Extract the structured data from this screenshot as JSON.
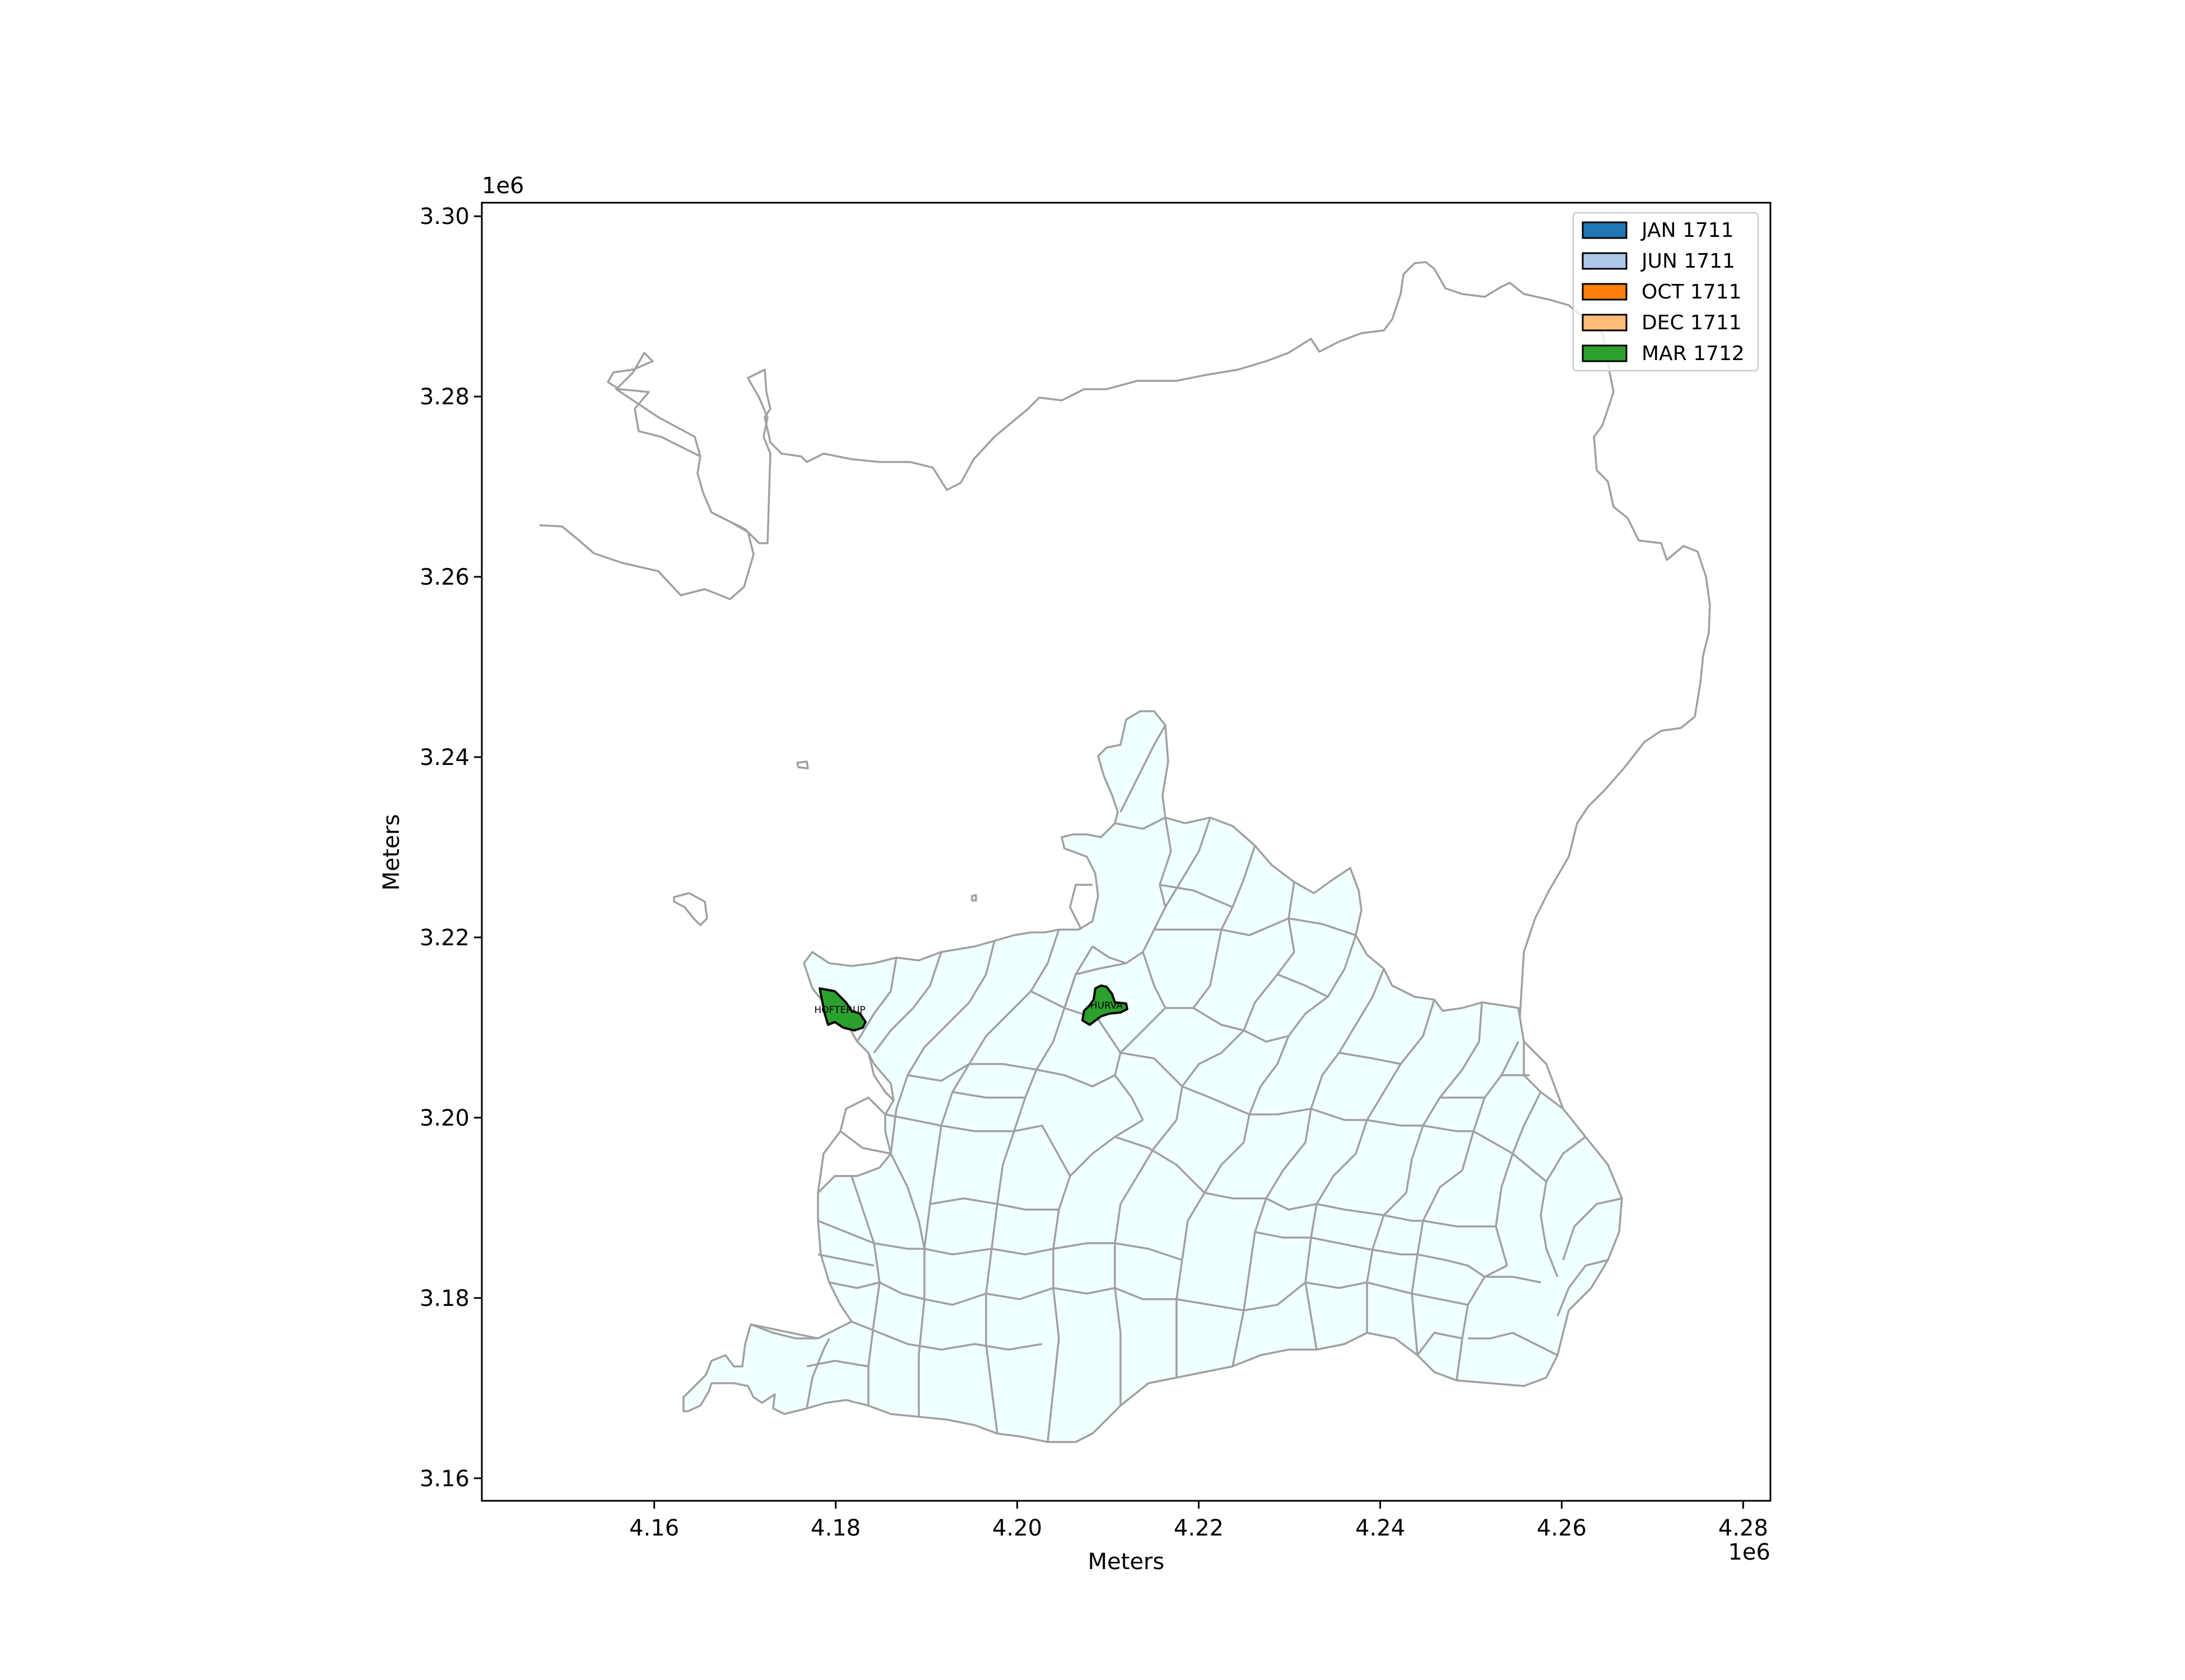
{
  "axes": {
    "xlabel": "Meters",
    "ylabel": "Meters",
    "x_offset": "1e6",
    "y_offset": "1e6",
    "xlim": [
      4.141,
      4.283
    ],
    "ylim": [
      3.1575,
      3.3015
    ],
    "x_ticks": [
      "4.16",
      "4.18",
      "4.20",
      "4.22",
      "4.24",
      "4.26",
      "4.28"
    ],
    "y_ticks": [
      "3.16",
      "3.18",
      "3.20",
      "3.22",
      "3.24",
      "3.26",
      "3.28",
      "3.30"
    ]
  },
  "legend": {
    "placement": "top-right",
    "items": [
      {
        "label": "JAN 1711",
        "color": "#1f77b4"
      },
      {
        "label": "JUN 1711",
        "color": "#aec7e8"
      },
      {
        "label": "OCT 1711",
        "color": "#ff7f0e"
      },
      {
        "label": "DEC 1711",
        "color": "#ffbb78"
      },
      {
        "label": "MAR 1712",
        "color": "#2ca02c"
      }
    ]
  },
  "map": {
    "base_fill": "#f0ffff",
    "border_color": "#a0a0a0",
    "highlighted_places": [
      {
        "label": "HOFTERUP",
        "period": "MAR 1712",
        "color": "#2ca02c"
      },
      {
        "label": "HURVA",
        "period": "MAR 1712",
        "color": "#2ca02c"
      }
    ]
  }
}
